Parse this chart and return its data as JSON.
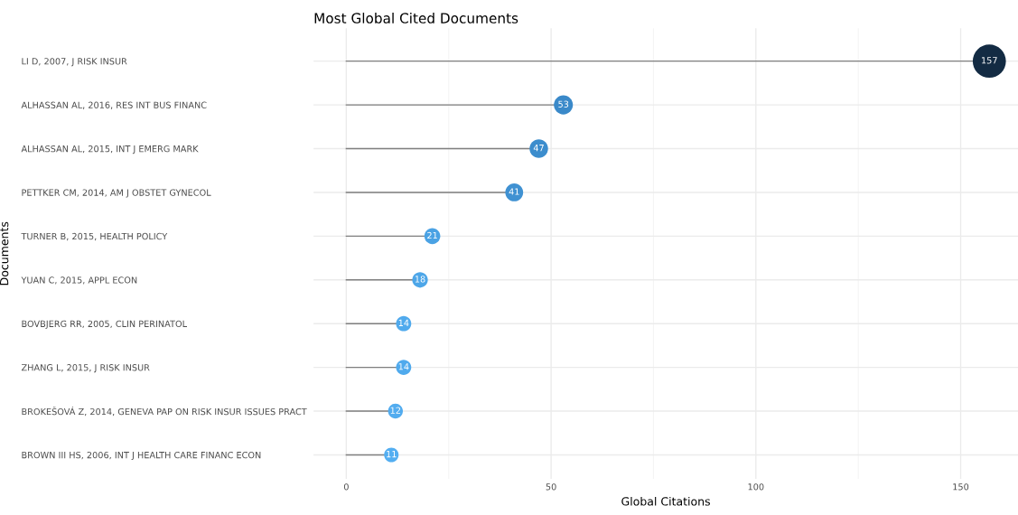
{
  "chart_data": {
    "type": "lollipop",
    "orientation": "horizontal",
    "title": "Most Global Cited Documents",
    "xlabel": "Global Citations",
    "ylabel": "Documents",
    "categories": [
      "LI D, 2007, J RISK INSUR",
      "ALHASSAN AL, 2016, RES INT BUS FINANC",
      "ALHASSAN AL, 2015, INT J EMERG MARK",
      "PETTKER CM, 2014, AM J OBSTET GYNECOL",
      "TURNER B, 2015, HEALTH POLICY",
      "YUAN C, 2015, APPL ECON",
      "BOVBJERG RR, 2005, CLIN PERINATOL",
      "ZHANG L, 2015, J RISK INSUR",
      "BROKEŠOVÁ Z, 2014, GENEVA PAP ON RISK INSUR ISSUES PRACT",
      "BROWN III HS, 2006, INT J HEALTH CARE FINANC ECON"
    ],
    "values": [
      157,
      53,
      47,
      41,
      21,
      18,
      14,
      14,
      12,
      11
    ],
    "sizes": [
      1,
      0.33,
      0.31,
      0.29,
      0.23,
      0.22,
      0.21,
      0.21,
      0.2,
      0.19
    ],
    "colors": [
      "#132b43",
      "#3a89c9",
      "#3c8dcd",
      "#3f91d2",
      "#4aa2e4",
      "#4da6e8",
      "#50aaed",
      "#50aaed",
      "#52acef",
      "#53aef1"
    ],
    "data_labels": true,
    "xlim": [
      -8,
      164
    ],
    "xticks": [
      0,
      50,
      100,
      150
    ],
    "grid": true,
    "legend": false
  }
}
